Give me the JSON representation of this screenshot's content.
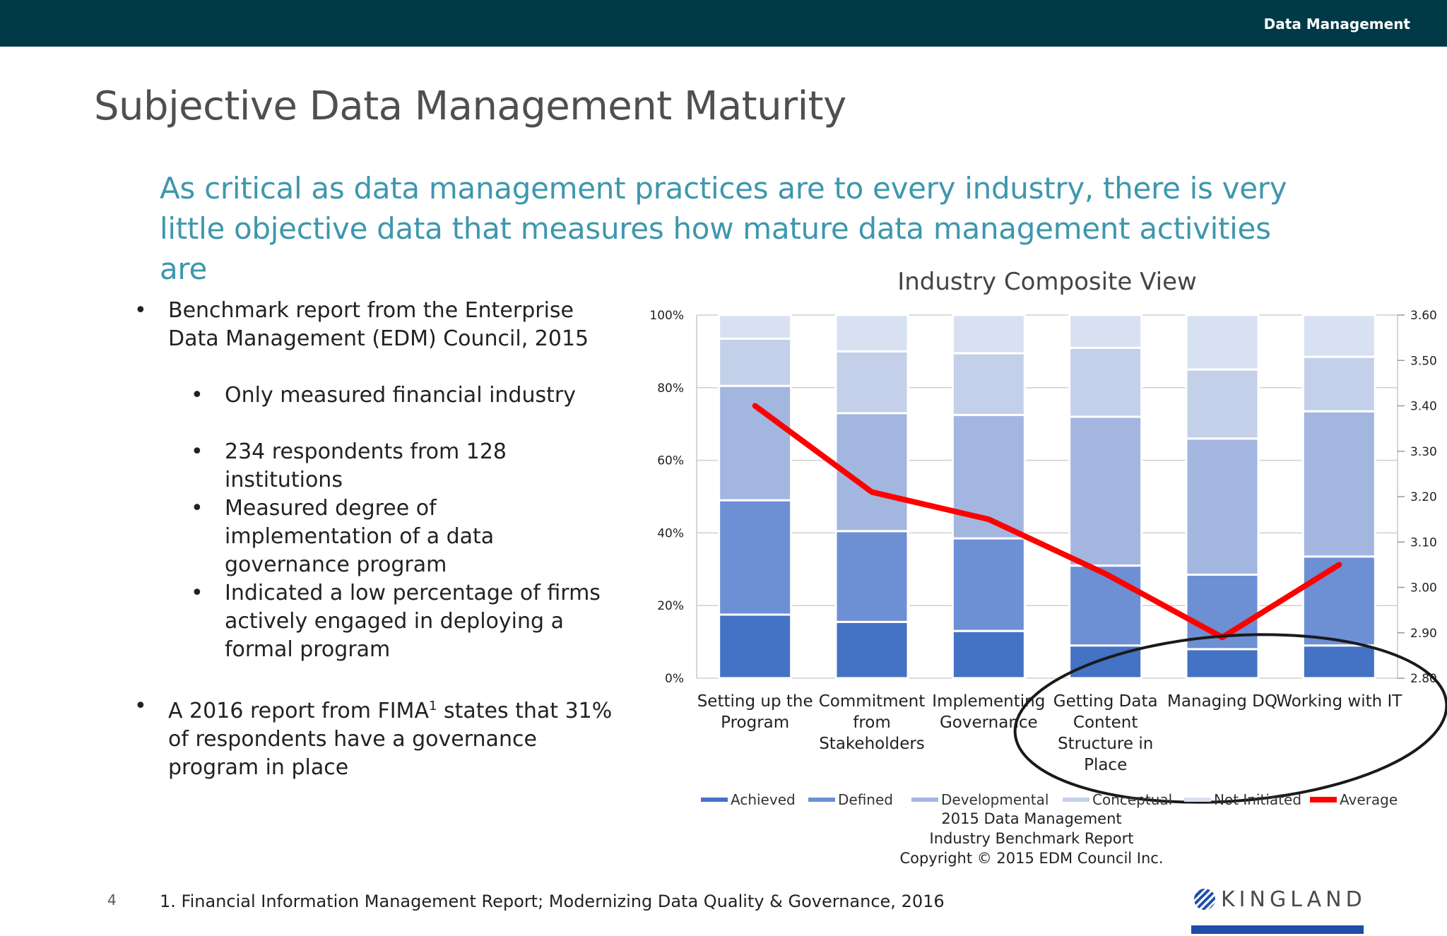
{
  "header": {
    "section_label": "Data Management"
  },
  "page": {
    "title": "Subjective Data Management Maturity",
    "subtitle": "As critical as data management practices are to every industry, there is very little objective data that measures how mature data management activities are",
    "page_number": "4",
    "footnote": "1. Financial Information Management Report; Modernizing Data Quality & Governance, 2016"
  },
  "bullets": [
    {
      "level": 1,
      "text": "Benchmark report from the Enterprise Data Management (EDM) Council, 2015"
    },
    {
      "level": 2,
      "text": "Only measured financial industry"
    },
    {
      "level": 2,
      "text": "234 respondents from 128 institutions"
    },
    {
      "level": 2,
      "text": "Measured degree of implementation of a data governance program"
    },
    {
      "level": 2,
      "text": "Indicated a low percentage of  firms actively engaged in deploying a formal program"
    },
    {
      "level": 1,
      "text_before": "A 2016 report from FIMA",
      "superscript": "1",
      "text_after": " states that 31% of respondents have a governance program in place"
    }
  ],
  "source_note": [
    "2015 Data Management",
    "Industry Benchmark Report",
    "Copyright © 2015 EDM Council Inc."
  ],
  "logo": {
    "text": "KINGLAND",
    "icon": "kingland-globe-icon"
  },
  "chart_data": {
    "type": "bar",
    "stacked": true,
    "title": "Industry Composite View",
    "categories": [
      [
        "Setting up the",
        "Program"
      ],
      [
        "Commitment",
        "from",
        "Stakeholders"
      ],
      [
        "Implementing",
        "Governance"
      ],
      [
        "Getting Data",
        "Content",
        "Structure in",
        "Place"
      ],
      [
        "Managing DQ"
      ],
      [
        "Working with IT"
      ]
    ],
    "series": [
      {
        "name": "Achieved",
        "color": "#4472c4",
        "values": [
          17.5,
          15.5,
          13,
          9,
          8,
          9
        ]
      },
      {
        "name": "Defined",
        "color": "#6d8fd4",
        "values": [
          31.5,
          25,
          25.5,
          22,
          20.5,
          24.5
        ]
      },
      {
        "name": "Developmental",
        "color": "#a3b6e0",
        "values": [
          31.5,
          32.5,
          34,
          41,
          37.5,
          40
        ]
      },
      {
        "name": "Conceptual",
        "color": "#c4d0ea",
        "values": [
          13,
          17,
          17,
          19,
          19,
          15
        ]
      },
      {
        "name": "Not Initiated",
        "color": "#d8e1f2",
        "values": [
          6.5,
          10,
          10.5,
          9,
          15,
          11.5
        ]
      }
    ],
    "line_series": {
      "name": "Average",
      "color": "#ff0000",
      "axis": "right",
      "values": [
        3.4,
        3.21,
        3.15,
        3.03,
        2.89,
        3.05
      ]
    },
    "ylim": [
      0,
      100
    ],
    "y_ticks": [
      "0%",
      "20%",
      "40%",
      "60%",
      "80%",
      "100%"
    ],
    "y2lim": [
      2.8,
      3.6
    ],
    "y2_ticks": [
      "2.80",
      "2.90",
      "3.00",
      "3.10",
      "3.20",
      "3.30",
      "3.40",
      "3.50",
      "3.60"
    ],
    "grid": true,
    "legend_position": "bottom",
    "annotation": {
      "type": "ellipse",
      "around": [
        "Getting Data Content Structure in Place",
        "Managing DQ",
        "Working with IT"
      ]
    }
  }
}
